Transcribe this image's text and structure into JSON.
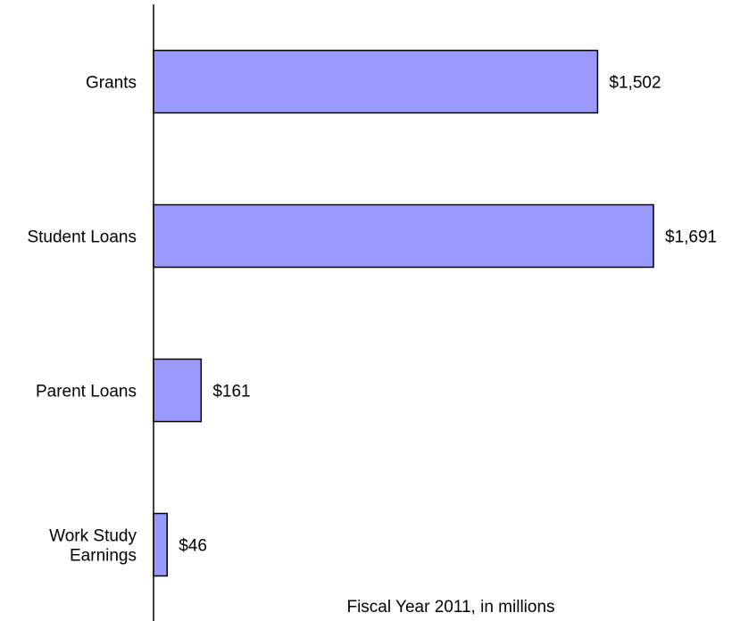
{
  "chart_data": {
    "type": "bar",
    "orientation": "horizontal",
    "categories": [
      "Grants",
      "Student Loans",
      "Parent Loans",
      "Work Study Earnings"
    ],
    "category_lines": [
      [
        "Grants"
      ],
      [
        "Student Loans"
      ],
      [
        "Parent Loans"
      ],
      [
        "Work Study",
        "Earnings"
      ]
    ],
    "values": [
      1502,
      1691,
      161,
      46
    ],
    "value_labels": [
      "$1,502",
      "$1,691",
      "$161",
      "$46"
    ],
    "title": "",
    "xlabel": "Fiscal Year 2011, in millions",
    "ylabel": "",
    "xlim": [
      0,
      1691
    ],
    "grid": false,
    "legend": "none",
    "colors": {
      "bar_fill": "#9999ff",
      "bar_stroke": "#000000",
      "axis": "#000000"
    }
  }
}
